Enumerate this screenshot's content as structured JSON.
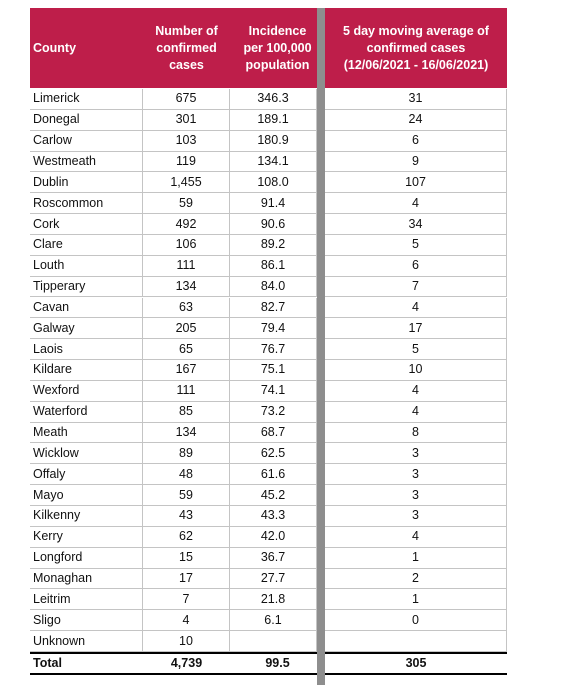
{
  "table": {
    "header": [
      "County",
      "Number of\nconfirmed\ncases",
      "Incidence\nper 100,000\npopulation",
      "5 day moving average of\nconfirmed cases\n(12/06/2021 - 16/06/2021)"
    ],
    "rows": [
      [
        "Limerick",
        "675",
        "346.3",
        "31"
      ],
      [
        "Donegal",
        "301",
        "189.1",
        "24"
      ],
      [
        "Carlow",
        "103",
        "180.9",
        "6"
      ],
      [
        "Westmeath",
        "119",
        "134.1",
        "9"
      ],
      [
        "Dublin",
        "1,455",
        "108.0",
        "107"
      ],
      [
        "Roscommon",
        "59",
        "91.4",
        "4"
      ],
      [
        "Cork",
        "492",
        "90.6",
        "34"
      ],
      [
        "Clare",
        "106",
        "89.2",
        "5"
      ],
      [
        "Louth",
        "111",
        "86.1",
        "6"
      ],
      [
        "Tipperary",
        "134",
        "84.0",
        "7"
      ],
      [
        "Cavan",
        "63",
        "82.7",
        "4"
      ],
      [
        "Galway",
        "205",
        "79.4",
        "17"
      ],
      [
        "Laois",
        "65",
        "76.7",
        "5"
      ],
      [
        "Kildare",
        "167",
        "75.1",
        "10"
      ],
      [
        "Wexford",
        "111",
        "74.1",
        "4"
      ],
      [
        "Waterford",
        "85",
        "73.2",
        "4"
      ],
      [
        "Meath",
        "134",
        "68.7",
        "8"
      ],
      [
        "Wicklow",
        "89",
        "62.5",
        "3"
      ],
      [
        "Offaly",
        "48",
        "61.6",
        "3"
      ],
      [
        "Mayo",
        "59",
        "45.2",
        "3"
      ],
      [
        "Kilkenny",
        "43",
        "43.3",
        "3"
      ],
      [
        "Kerry",
        "62",
        "42.0",
        "4"
      ],
      [
        "Longford",
        "15",
        "36.7",
        "1"
      ],
      [
        "Monaghan",
        "17",
        "27.7",
        "2"
      ],
      [
        "Leitrim",
        "7",
        "21.8",
        "1"
      ],
      [
        "Sligo",
        "4",
        "6.1",
        "0"
      ],
      [
        "Unknown",
        "10",
        null,
        null
      ]
    ],
    "total": [
      "Total",
      "4,739",
      "99.5",
      "305"
    ]
  }
}
